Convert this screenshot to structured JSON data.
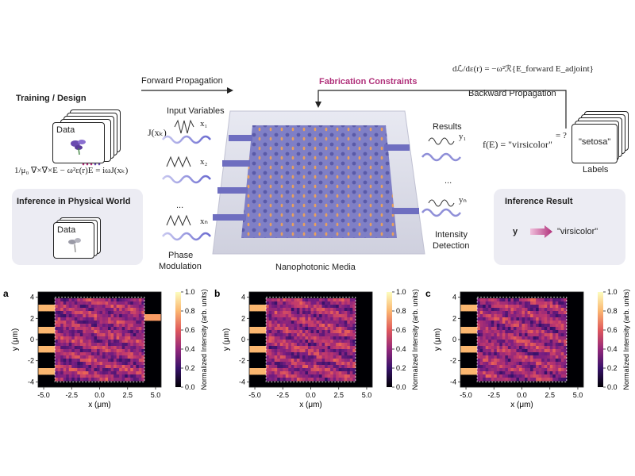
{
  "left": {
    "training_title": "Training / Design",
    "data_label": "Data",
    "equation": "1/μ₀ ∇×∇×E − ω²ε(r)E = iωJ(xₖ)",
    "inference_title": "Inference in Physical World",
    "data_label_2": "Data"
  },
  "top": {
    "forward_label": "Forward Propagation",
    "fabrication_label": "Fabrication Constraints",
    "fabrication_color": "#b0307a",
    "adjoint_equation": "dℒ/dε(r) = −ω²ℛ{E_forward E_adjoint}",
    "backward_label": "Backward Propagation"
  },
  "inputs": {
    "title": "Input Variables",
    "source_label": "J(xₖ)",
    "x1": "x₁",
    "x2": "x₂",
    "dots": "...",
    "xn": "xₙ",
    "phase_label": "Phase",
    "phase_label2": "Modulation"
  },
  "device": {
    "media_label": "Nanophotonic Media",
    "slab_color": "#7f7fc6",
    "hole_color": "#e7a05e"
  },
  "outputs": {
    "results_label": "Results",
    "y1": "y₁",
    "dots": "...",
    "yn": "yₙ",
    "intensity_label": "Intensity",
    "detection_label": "Detection"
  },
  "right": {
    "function_eq": "f(E) = \"virsicolor\"",
    "compare": "= ?",
    "label_card": "\"setosa\"",
    "labels_caption": "Labels",
    "inference_title": "Inference Result",
    "y_symbol": "y",
    "result_text": "\"virsicolor\""
  },
  "heatmaps": {
    "panels": [
      "a",
      "b",
      "c"
    ],
    "xlabel": "x (μm)",
    "ylabel": "y (μm)",
    "x_ticks": [
      "-5.0",
      "-2.5",
      "0.0",
      "2.5",
      "5.0"
    ],
    "y_ticks": [
      "4",
      "2",
      "0",
      "-2",
      "-4"
    ],
    "cbar_label": "Normalized Intensity (arb. units)",
    "cbar_ticks": [
      "1.0",
      "0.8",
      "0.6",
      "0.4",
      "0.2",
      "0.0"
    ]
  },
  "chart_data": [
    {
      "type": "heatmap",
      "title": "a",
      "xlabel": "x (μm)",
      "ylabel": "y (μm)",
      "xlim": [
        -5.5,
        5.5
      ],
      "ylim": [
        -4.5,
        4.5
      ],
      "colorbar": {
        "label": "Normalized Intensity (arb. units)",
        "range": [
          0.0,
          1.0
        ]
      },
      "input_ports_y": [
        3,
        1,
        -1,
        -3
      ],
      "output_port_y": 2
    },
    {
      "type": "heatmap",
      "title": "b",
      "xlabel": "x (μm)",
      "ylabel": "y (μm)",
      "xlim": [
        -5.5,
        5.5
      ],
      "ylim": [
        -4.5,
        4.5
      ],
      "colorbar": {
        "label": "Normalized Intensity (arb. units)",
        "range": [
          0.0,
          1.0
        ]
      },
      "input_ports_y": [
        3,
        1,
        -1,
        -3
      ],
      "output_port_y": 2
    },
    {
      "type": "heatmap",
      "title": "c",
      "xlabel": "x (μm)",
      "ylabel": "y (μm)",
      "xlim": [
        -5.5,
        5.5
      ],
      "ylim": [
        -4.5,
        4.5
      ],
      "colorbar": {
        "label": "Normalized Intensity (arb. units)",
        "range": [
          0.0,
          1.0
        ]
      },
      "input_ports_y": [
        3,
        1,
        -1,
        -3
      ],
      "output_port_y": 2
    }
  ]
}
